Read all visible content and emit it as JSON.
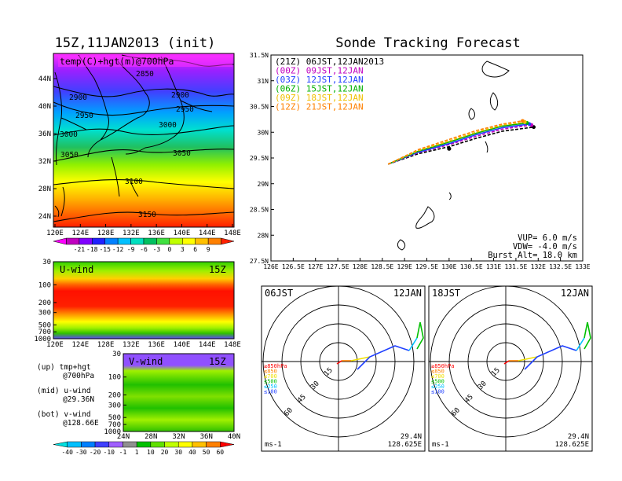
{
  "header": {
    "init_title": "15Z,11JAN2013 (init)",
    "main_title": "Sonde Tracking Forecast"
  },
  "map_panel": {
    "label": "temp(C)+hgt(m)@700hPa",
    "x_ticks": [
      "120E",
      "124E",
      "128E",
      "132E",
      "136E",
      "140E",
      "144E",
      "148E"
    ],
    "y_ticks": [
      "24N",
      "28N",
      "32N",
      "36N",
      "40N",
      "44N"
    ],
    "contours": [
      "2850",
      "2900",
      "2900",
      "2950",
      "2950",
      "3000",
      "3000",
      "3050",
      "3050",
      "3100",
      "3150"
    ],
    "colorbar_labels": [
      "-21",
      "-18",
      "-15",
      "-12",
      "-9",
      "-6",
      "-3",
      "0",
      "3",
      "6",
      "9"
    ],
    "colorbar_colors": [
      "#ff00ff",
      "#c000c0",
      "#8000ff",
      "#2020ff",
      "#0080ff",
      "#00c0ff",
      "#00e0c0",
      "#00c060",
      "#40e040",
      "#c0ff00",
      "#ffff00",
      "#ffc000",
      "#ff8000",
      "#ff2000"
    ]
  },
  "u_panel": {
    "label": "U-wind",
    "time": "15Z",
    "y_ticks": [
      "30",
      "100",
      "200",
      "300",
      "500",
      "700",
      "1000"
    ],
    "x_ticks": [
      "120E",
      "124E",
      "128E",
      "132E",
      "136E",
      "140E",
      "144E",
      "148E"
    ]
  },
  "v_panel": {
    "label": "V-wind",
    "time": "15Z",
    "y_ticks": [
      "30",
      "100",
      "200",
      "300",
      "500",
      "700",
      "1000"
    ],
    "x_ticks": [
      "24N",
      "28N",
      "32N",
      "36N",
      "40N"
    ]
  },
  "notes": {
    "up": "(up) tmp+hgt",
    "up2": "@700hPa",
    "mid": "(mid) u-wind",
    "mid2": "@29.36N",
    "bot": "(bot) v-wind",
    "bot2": "@128.66E"
  },
  "wind_colorbar": {
    "labels": [
      "-40",
      "-30",
      "-20",
      "-10",
      "-1",
      "1",
      "10",
      "20",
      "30",
      "40",
      "50",
      "60"
    ],
    "colors": [
      "#00e0e0",
      "#00c0ff",
      "#0080ff",
      "#4040ff",
      "#a060ff",
      "#909090",
      "#00c000",
      "#60e000",
      "#c0ff00",
      "#ffff00",
      "#ffc000",
      "#ff8000",
      "#ff0000"
    ]
  },
  "track_panel": {
    "x_ticks": [
      "126E",
      "126.5E",
      "127E",
      "127.5E",
      "128E",
      "128.5E",
      "129E",
      "129.5E",
      "130E",
      "130.5E",
      "131E",
      "131.5E",
      "132E",
      "132.5E",
      "133E"
    ],
    "y_ticks": [
      "27.5N",
      "28N",
      "28.5N",
      "29N",
      "29.5N",
      "30N",
      "30.5N",
      "31N",
      "31.5N"
    ],
    "legend": [
      {
        "tag": "(21Z)",
        "time": "06JST,12JAN2013",
        "color": "#000000"
      },
      {
        "tag": "(00Z)",
        "time": "09JST,12JAN",
        "color": "#c000c0"
      },
      {
        "tag": "(03Z)",
        "time": "12JST,12JAN",
        "color": "#2040ff"
      },
      {
        "tag": "(06Z)",
        "time": "15JST,12JAN",
        "color": "#00b000"
      },
      {
        "tag": "(09Z)",
        "time": "18JST,12JAN",
        "color": "#f0c000"
      },
      {
        "tag": "(12Z)",
        "time": "21JST,12JAN",
        "color": "#ff8000"
      }
    ],
    "vup": "VUP= 6.0 m/s",
    "vdw": "VDW= -4.0 m/s",
    "burst": "Burst Alt= 18.0 km"
  },
  "polar_left": {
    "time": "06JST",
    "date": "12JAN",
    "rings": [
      "15",
      "30",
      "45",
      "60"
    ],
    "levels": [
      "≥850hPa",
      "≤850",
      "≤700",
      "≤500",
      "≤250",
      "≤100"
    ],
    "unit": "ms-1",
    "lat": "29.4N",
    "lon": "128.625E"
  },
  "polar_right": {
    "time": "18JST",
    "date": "12JAN",
    "rings": [
      "15",
      "30",
      "45",
      "60"
    ],
    "levels": [
      "≥850hPa",
      "≤850",
      "≤700",
      "≤500",
      "≤250",
      "≤100"
    ],
    "unit": "ms-1",
    "lat": "29.4N",
    "lon": "128.625E"
  },
  "level_colors": [
    "#ff0000",
    "#ff8000",
    "#f0e000",
    "#00c000",
    "#00c0ff",
    "#2040ff"
  ],
  "chart_data": {
    "type": "line",
    "title": "Sonde Tracking Forecast",
    "xlim": [
      126,
      133
    ],
    "ylim": [
      27.5,
      31.5
    ],
    "launch": {
      "lon": 128.625,
      "lat": 29.36
    },
    "series": [
      {
        "name": "(21Z) 06JST,12JAN2013",
        "x": [
          128.63,
          129.3,
          130.0,
          130.6,
          131.2,
          131.9
        ],
        "y": [
          29.38,
          29.58,
          29.72,
          29.88,
          30.02,
          30.1
        ]
      },
      {
        "name": "(00Z) 09JST,12JAN",
        "x": [
          128.63,
          129.3,
          130.0,
          130.6,
          131.2,
          131.85
        ],
        "y": [
          29.38,
          29.6,
          29.76,
          29.92,
          30.06,
          30.14
        ]
      },
      {
        "name": "(03Z) 12JST,12JAN",
        "x": [
          128.63,
          129.3,
          130.0,
          130.6,
          131.2,
          131.8
        ],
        "y": [
          29.38,
          29.61,
          29.78,
          29.95,
          30.09,
          30.16
        ]
      },
      {
        "name": "(06Z) 15JST,12JAN",
        "x": [
          128.63,
          129.3,
          130.0,
          130.6,
          131.2,
          131.75
        ],
        "y": [
          29.38,
          29.63,
          29.81,
          29.98,
          30.12,
          30.18
        ]
      },
      {
        "name": "(09Z) 18JST,12JAN",
        "x": [
          128.63,
          129.3,
          130.0,
          130.6,
          131.2,
          131.7
        ],
        "y": [
          29.38,
          29.64,
          29.83,
          30.0,
          30.14,
          30.2
        ]
      },
      {
        "name": "(12Z) 21JST,12JAN",
        "x": [
          128.63,
          129.3,
          130.0,
          130.6,
          131.2,
          131.65
        ],
        "y": [
          29.38,
          29.66,
          29.86,
          30.03,
          30.16,
          30.22
        ]
      }
    ]
  }
}
